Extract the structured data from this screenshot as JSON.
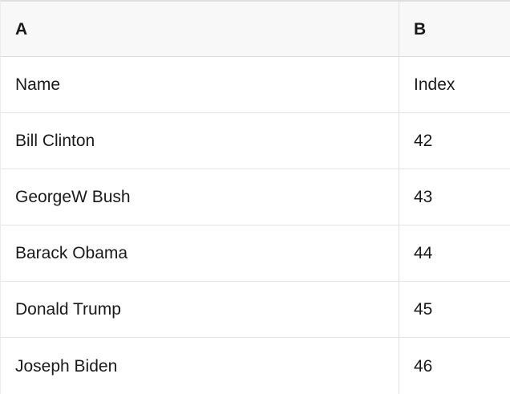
{
  "table": {
    "columns": [
      {
        "label": "A"
      },
      {
        "label": "B"
      }
    ],
    "rows": [
      {
        "a": "Name",
        "b": "Index"
      },
      {
        "a": "Bill Clinton",
        "b": "42"
      },
      {
        "a": "GeorgeW Bush",
        "b": "43"
      },
      {
        "a": "Barack Obama",
        "b": "44"
      },
      {
        "a": "Donald Trump",
        "b": "45"
      },
      {
        "a": "Joseph Biden",
        "b": "46"
      }
    ],
    "colors": {
      "header_bg": "#f8f8f8",
      "grid_border": "#e0e0e0",
      "text": "#1a1a1a"
    }
  }
}
